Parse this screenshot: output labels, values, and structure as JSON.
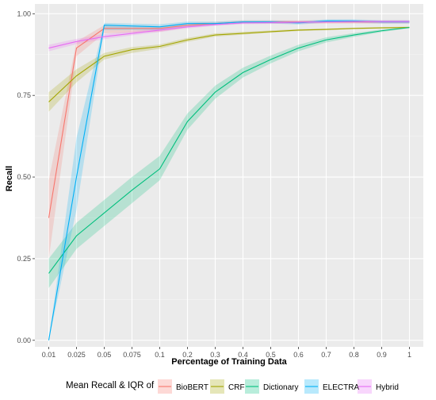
{
  "chart_data": {
    "type": "line",
    "xlabel": "Percentage of Training Data",
    "ylabel": "Recall",
    "x_categories": [
      "0.01",
      "0.025",
      "0.05",
      "0.075",
      "0.1",
      "0.2",
      "0.3",
      "0.4",
      "0.5",
      "0.6",
      "0.7",
      "0.8",
      "0.9",
      "1"
    ],
    "y_ticks": [
      "0.00",
      "0.25",
      "0.50",
      "0.75",
      "1.00"
    ],
    "ylim": [
      -0.02,
      1.03
    ],
    "grid": true,
    "legend": {
      "title": "Mean Recall & IQR of",
      "position": "bottom"
    },
    "series": [
      {
        "name": "BioBERT",
        "color": "#F8766D",
        "x": [
          "0.01",
          "0.025",
          "0.05",
          "0.1",
          "0.2",
          "0.3",
          "0.4",
          "0.5",
          "0.6",
          "0.7",
          "0.8",
          "0.9",
          "1"
        ],
        "values": [
          0.375,
          0.895,
          0.955,
          0.955,
          0.965,
          0.97,
          0.975,
          0.975,
          0.975,
          0.975,
          0.975,
          0.975,
          0.975
        ],
        "iqr_low": [
          0.25,
          0.87,
          0.94,
          0.945,
          0.958,
          0.965,
          0.97,
          0.97,
          0.97,
          0.97,
          0.97,
          0.97,
          0.97
        ],
        "iqr_high": [
          0.49,
          0.915,
          0.965,
          0.962,
          0.972,
          0.975,
          0.98,
          0.98,
          0.98,
          0.98,
          0.98,
          0.98,
          0.98
        ]
      },
      {
        "name": "CRF",
        "color": "#A3A500",
        "x": [
          "0.01",
          "0.025",
          "0.05",
          "0.075",
          "0.1",
          "0.2",
          "0.3",
          "0.4",
          "0.5",
          "0.6",
          "0.7",
          "0.8",
          "0.9",
          "1"
        ],
        "values": [
          0.73,
          0.81,
          0.87,
          0.89,
          0.9,
          0.92,
          0.935,
          0.94,
          0.945,
          0.95,
          0.952,
          0.955,
          0.957,
          0.958
        ],
        "iqr_low": [
          0.7,
          0.79,
          0.86,
          0.88,
          0.893,
          0.914,
          0.93,
          0.936,
          0.942,
          0.947,
          0.95,
          0.953,
          0.955,
          0.956
        ],
        "iqr_high": [
          0.76,
          0.83,
          0.88,
          0.898,
          0.906,
          0.926,
          0.94,
          0.945,
          0.949,
          0.953,
          0.955,
          0.957,
          0.959,
          0.961
        ]
      },
      {
        "name": "Dictionary",
        "color": "#00BF7D",
        "x": [
          "0.01",
          "0.025",
          "0.05",
          "0.075",
          "0.1",
          "0.2",
          "0.3",
          "0.4",
          "0.5",
          "0.6",
          "0.7",
          "0.8",
          "0.9",
          "1"
        ],
        "values": [
          0.205,
          0.32,
          0.39,
          0.46,
          0.525,
          0.67,
          0.76,
          0.82,
          0.86,
          0.895,
          0.92,
          0.935,
          0.948,
          0.958
        ],
        "iqr_low": [
          0.16,
          0.28,
          0.35,
          0.42,
          0.49,
          0.645,
          0.74,
          0.805,
          0.848,
          0.885,
          0.912,
          0.929,
          0.944,
          0.956
        ],
        "iqr_high": [
          0.25,
          0.36,
          0.43,
          0.5,
          0.565,
          0.695,
          0.78,
          0.835,
          0.872,
          0.905,
          0.928,
          0.941,
          0.952,
          0.96
        ]
      },
      {
        "name": "ELECTRA",
        "color": "#00B0F6",
        "x": [
          "0.01",
          "0.025",
          "0.05",
          "0.1",
          "0.2",
          "0.3",
          "0.4",
          "0.5",
          "0.6",
          "0.7",
          "0.8",
          "0.9",
          "1"
        ],
        "values": [
          0.0,
          0.5,
          0.965,
          0.96,
          0.97,
          0.97,
          0.975,
          0.975,
          0.972,
          0.978,
          0.978,
          0.975,
          0.975
        ],
        "iqr_low": [
          0.0,
          0.4,
          0.95,
          0.95,
          0.962,
          0.965,
          0.97,
          0.97,
          0.967,
          0.973,
          0.973,
          0.97,
          0.97
        ],
        "iqr_high": [
          0.0,
          0.62,
          0.972,
          0.968,
          0.976,
          0.976,
          0.98,
          0.98,
          0.977,
          0.983,
          0.983,
          0.98,
          0.98
        ]
      },
      {
        "name": "Hybrid",
        "color": "#E76BF3",
        "x": [
          "0.01",
          "0.025",
          "0.05",
          "0.075",
          "0.1",
          "0.2",
          "0.3",
          "0.4",
          "0.5",
          "0.6",
          "0.7",
          "0.8",
          "0.9",
          "1"
        ],
        "values": [
          0.895,
          0.915,
          0.93,
          0.94,
          0.95,
          0.96,
          0.967,
          0.972,
          0.973,
          0.974,
          0.975,
          0.976,
          0.976,
          0.976
        ],
        "iqr_low": [
          0.885,
          0.907,
          0.922,
          0.934,
          0.944,
          0.955,
          0.963,
          0.968,
          0.969,
          0.97,
          0.971,
          0.972,
          0.972,
          0.972
        ],
        "iqr_high": [
          0.905,
          0.923,
          0.938,
          0.946,
          0.956,
          0.965,
          0.971,
          0.976,
          0.977,
          0.978,
          0.979,
          0.98,
          0.98,
          0.98
        ]
      }
    ]
  }
}
